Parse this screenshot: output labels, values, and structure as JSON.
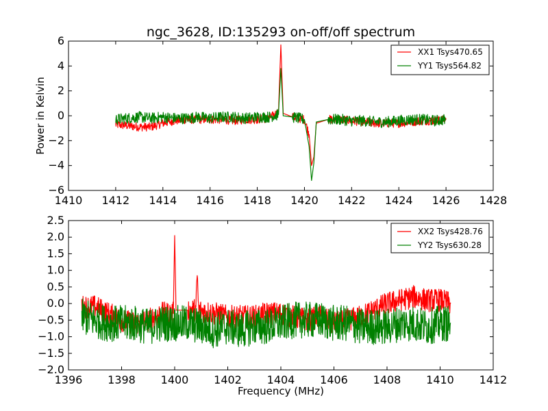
{
  "chart_data": [
    {
      "type": "line",
      "title": "ngc_3628, ID:135293 on-off/off spectrum",
      "xlabel": "",
      "ylabel": "Power in Kelvin",
      "xlim": [
        1410,
        1428
      ],
      "ylim": [
        -6,
        6
      ],
      "xticks": [
        "1410",
        "1412",
        "1414",
        "1416",
        "1418",
        "1420",
        "1422",
        "1424",
        "1426",
        "1428"
      ],
      "yticks": [
        "6",
        "4",
        "2",
        "0",
        "−2",
        "−4",
        "−6"
      ],
      "legend_position": "top-right",
      "series": [
        {
          "name": "XX1 Tsys470.65",
          "color": "#ff0000",
          "x": [
            1412.0,
            1412.5,
            1413.0,
            1413.5,
            1414.0,
            1414.5,
            1415.0,
            1415.5,
            1416.0,
            1416.5,
            1417.0,
            1417.5,
            1418.0,
            1418.5,
            1418.9,
            1419.0,
            1419.1,
            1419.5,
            1420.0,
            1420.2,
            1420.3,
            1420.4,
            1420.5,
            1421.0,
            1421.5,
            1422.0,
            1422.5,
            1423.0,
            1423.5,
            1424.0,
            1424.5,
            1425.0,
            1425.5,
            1426.0
          ],
          "y": [
            -0.7,
            -0.8,
            -0.9,
            -0.9,
            -0.6,
            -0.4,
            -0.3,
            -0.3,
            -0.3,
            -0.3,
            -0.4,
            -0.3,
            -0.3,
            -0.2,
            0.3,
            5.7,
            0.2,
            -0.1,
            -0.3,
            -1.5,
            -4.0,
            -3.3,
            -0.6,
            -0.3,
            -0.3,
            -0.4,
            -0.5,
            -0.6,
            -0.6,
            -0.6,
            -0.5,
            -0.4,
            -0.4,
            -0.3
          ]
        },
        {
          "name": "YY1 Tsys564.82",
          "color": "#008000",
          "x": [
            1412.0,
            1412.5,
            1413.0,
            1413.5,
            1414.0,
            1414.5,
            1415.0,
            1415.5,
            1416.0,
            1416.5,
            1417.0,
            1417.5,
            1418.0,
            1418.5,
            1418.9,
            1419.0,
            1419.1,
            1419.5,
            1420.0,
            1420.2,
            1420.3,
            1420.4,
            1420.5,
            1421.0,
            1421.5,
            1422.0,
            1422.5,
            1423.0,
            1423.5,
            1424.0,
            1424.5,
            1425.0,
            1425.5,
            1426.0
          ],
          "y": [
            -0.3,
            -0.2,
            -0.1,
            -0.2,
            -0.1,
            -0.2,
            -0.2,
            -0.1,
            -0.2,
            -0.1,
            -0.1,
            -0.2,
            -0.1,
            -0.1,
            0.1,
            3.8,
            0.0,
            -0.1,
            -0.3,
            -2.5,
            -5.2,
            -3.8,
            -0.5,
            -0.3,
            -0.3,
            -0.4,
            -0.4,
            -0.5,
            -0.5,
            -0.4,
            -0.3,
            -0.3,
            -0.4,
            -0.3
          ]
        }
      ]
    },
    {
      "type": "line",
      "title": "",
      "xlabel": "Frequency (MHz)",
      "ylabel": "",
      "xlim": [
        1396,
        1412
      ],
      "ylim": [
        -2.0,
        2.5
      ],
      "xticks": [
        "1396",
        "1398",
        "1400",
        "1402",
        "1404",
        "1406",
        "1408",
        "1410",
        "1412"
      ],
      "yticks": [
        "2.5",
        "2.0",
        "1.5",
        "1.0",
        "0.5",
        "0.0",
        "−0.5",
        "−1.0",
        "−1.5",
        "−2.0"
      ],
      "legend_position": "top-right",
      "series": [
        {
          "name": "XX2 Tsys428.76",
          "color": "#ff0000",
          "x": [
            1396.5,
            1397.0,
            1397.5,
            1398.0,
            1398.5,
            1399.0,
            1399.5,
            1399.95,
            1400.0,
            1400.05,
            1400.5,
            1400.8,
            1400.85,
            1400.9,
            1401.5,
            1402.0,
            1402.5,
            1403.0,
            1403.5,
            1404.0,
            1404.5,
            1405.0,
            1405.5,
            1406.0,
            1406.5,
            1407.0,
            1407.5,
            1408.0,
            1408.5,
            1409.0,
            1409.5,
            1410.0,
            1410.4
          ],
          "y": [
            -0.1,
            -0.1,
            -0.3,
            -0.5,
            -0.6,
            -0.5,
            -0.3,
            -0.3,
            2.05,
            -0.2,
            -0.2,
            -0.2,
            0.9,
            -0.2,
            -0.3,
            -0.4,
            -0.4,
            -0.4,
            -0.3,
            -0.3,
            -0.4,
            -0.5,
            -0.4,
            -0.6,
            -0.5,
            -0.4,
            -0.2,
            0.0,
            0.1,
            0.2,
            0.1,
            0.1,
            0.0
          ]
        },
        {
          "name": "YY2 Tsys630.28",
          "color": "#008000",
          "x": [
            1396.5,
            1397.0,
            1397.5,
            1398.0,
            1398.5,
            1399.0,
            1399.5,
            1400.0,
            1400.5,
            1401.0,
            1401.5,
            1402.0,
            1402.5,
            1403.0,
            1403.5,
            1404.0,
            1404.5,
            1405.0,
            1405.5,
            1406.0,
            1406.5,
            1407.0,
            1407.5,
            1408.0,
            1408.5,
            1409.0,
            1409.5,
            1410.0,
            1410.4
          ],
          "y": [
            -0.4,
            -0.5,
            -0.6,
            -0.6,
            -0.6,
            -0.7,
            -0.6,
            -0.6,
            -0.6,
            -0.7,
            -0.8,
            -0.7,
            -0.8,
            -0.7,
            -0.7,
            -0.6,
            -0.5,
            -0.5,
            -0.5,
            -0.6,
            -0.6,
            -0.7,
            -0.7,
            -0.7,
            -0.6,
            -0.6,
            -0.7,
            -0.6,
            -0.6
          ]
        }
      ]
    }
  ]
}
